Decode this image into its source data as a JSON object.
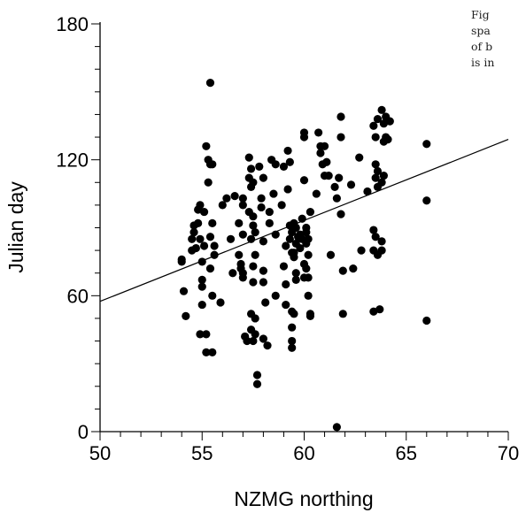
{
  "caption_lines": [
    "Fig",
    "spa",
    "of b",
    "is in"
  ],
  "chart_data": {
    "type": "scatter",
    "title": "",
    "xlabel": "NZMG northing",
    "ylabel": "Julian day",
    "xlim": [
      50,
      70
    ],
    "ylim": [
      0,
      180
    ],
    "xticks": [
      "50",
      "55",
      "60",
      "65",
      "70"
    ],
    "yticks": [
      "0",
      "60",
      "120",
      "180"
    ],
    "grid": false,
    "regression_line": {
      "x": [
        50,
        70
      ],
      "y": [
        57.5,
        129
      ]
    },
    "points": [
      [
        54.0,
        76
      ],
      [
        54.0,
        75
      ],
      [
        54.1,
        62
      ],
      [
        54.2,
        51
      ],
      [
        54.5,
        80
      ],
      [
        54.5,
        85
      ],
      [
        54.6,
        91
      ],
      [
        54.6,
        88
      ],
      [
        54.7,
        81
      ],
      [
        54.8,
        98
      ],
      [
        54.8,
        92
      ],
      [
        54.9,
        100
      ],
      [
        54.9,
        85
      ],
      [
        55.0,
        75
      ],
      [
        55.0,
        67
      ],
      [
        55.0,
        64
      ],
      [
        55.1,
        97
      ],
      [
        55.1,
        82
      ],
      [
        55.0,
        56
      ],
      [
        54.9,
        43
      ],
      [
        55.2,
        43
      ],
      [
        55.2,
        35
      ],
      [
        55.3,
        120
      ],
      [
        55.2,
        126
      ],
      [
        55.4,
        118
      ],
      [
        55.5,
        118
      ],
      [
        55.3,
        110
      ],
      [
        55.4,
        86
      ],
      [
        55.5,
        92
      ],
      [
        55.6,
        82
      ],
      [
        55.6,
        78
      ],
      [
        55.4,
        72
      ],
      [
        55.5,
        60
      ],
      [
        55.5,
        35
      ],
      [
        55.4,
        154
      ],
      [
        55.9,
        57
      ],
      [
        56.0,
        100
      ],
      [
        56.2,
        103
      ],
      [
        56.4,
        85
      ],
      [
        56.5,
        70
      ],
      [
        56.6,
        104
      ],
      [
        56.8,
        92
      ],
      [
        56.8,
        78
      ],
      [
        56.9,
        74
      ],
      [
        57.0,
        87
      ],
      [
        57.0,
        103
      ],
      [
        57.0,
        100
      ],
      [
        57.0,
        70
      ],
      [
        56.9,
        72
      ],
      [
        57.0,
        68
      ],
      [
        57.1,
        42
      ],
      [
        57.2,
        40
      ],
      [
        57.3,
        112
      ],
      [
        57.3,
        121
      ],
      [
        57.4,
        116
      ],
      [
        57.4,
        108
      ],
      [
        57.5,
        110
      ],
      [
        57.3,
        97
      ],
      [
        57.5,
        95
      ],
      [
        57.5,
        91
      ],
      [
        57.6,
        88
      ],
      [
        57.4,
        85
      ],
      [
        57.6,
        78
      ],
      [
        57.5,
        73
      ],
      [
        57.5,
        66
      ],
      [
        57.4,
        52
      ],
      [
        57.6,
        50
      ],
      [
        57.4,
        45
      ],
      [
        57.6,
        43
      ],
      [
        57.5,
        40
      ],
      [
        57.7,
        25
      ],
      [
        57.7,
        21
      ],
      [
        57.8,
        117
      ],
      [
        57.9,
        103
      ],
      [
        58.0,
        112
      ],
      [
        57.9,
        99
      ],
      [
        58.0,
        84
      ],
      [
        58.0,
        71
      ],
      [
        58.0,
        66
      ],
      [
        58.1,
        57
      ],
      [
        58.0,
        41
      ],
      [
        58.2,
        38
      ],
      [
        58.3,
        92
      ],
      [
        58.3,
        97
      ],
      [
        58.4,
        120
      ],
      [
        58.5,
        105
      ],
      [
        58.6,
        118
      ],
      [
        58.6,
        87
      ],
      [
        58.6,
        60
      ],
      [
        58.9,
        100
      ],
      [
        59.0,
        117
      ],
      [
        59.0,
        73
      ],
      [
        59.1,
        82
      ],
      [
        59.1,
        65
      ],
      [
        59.1,
        56
      ],
      [
        59.2,
        124
      ],
      [
        59.3,
        119
      ],
      [
        59.2,
        107
      ],
      [
        59.3,
        91
      ],
      [
        59.4,
        88
      ],
      [
        59.3,
        85
      ],
      [
        59.4,
        79
      ],
      [
        59.5,
        77
      ],
      [
        59.5,
        92
      ],
      [
        59.5,
        79
      ],
      [
        59.6,
        70
      ],
      [
        59.6,
        67
      ],
      [
        59.4,
        53
      ],
      [
        59.5,
        52
      ],
      [
        59.4,
        46
      ],
      [
        59.4,
        40
      ],
      [
        59.4,
        37
      ],
      [
        59.6,
        90
      ],
      [
        59.6,
        83
      ],
      [
        59.7,
        86
      ],
      [
        59.8,
        87
      ],
      [
        59.8,
        81
      ],
      [
        59.9,
        94
      ],
      [
        59.9,
        85
      ],
      [
        60.0,
        111
      ],
      [
        60.0,
        132
      ],
      [
        60.0,
        130
      ],
      [
        60.0,
        74
      ],
      [
        60.0,
        68
      ],
      [
        60.1,
        90
      ],
      [
        60.1,
        88
      ],
      [
        60.2,
        85
      ],
      [
        60.1,
        83
      ],
      [
        60.2,
        78
      ],
      [
        60.1,
        72
      ],
      [
        60.2,
        68
      ],
      [
        60.2,
        60
      ],
      [
        60.3,
        52
      ],
      [
        60.3,
        51
      ],
      [
        60.3,
        97
      ],
      [
        60.6,
        105
      ],
      [
        60.7,
        132
      ],
      [
        60.8,
        126
      ],
      [
        60.8,
        123
      ],
      [
        60.9,
        118
      ],
      [
        61.0,
        113
      ],
      [
        61.0,
        126
      ],
      [
        61.1,
        119
      ],
      [
        61.2,
        113
      ],
      [
        61.3,
        78
      ],
      [
        61.5,
        108
      ],
      [
        61.6,
        103
      ],
      [
        61.7,
        112
      ],
      [
        61.8,
        96
      ],
      [
        61.8,
        130
      ],
      [
        61.8,
        139
      ],
      [
        61.9,
        71
      ],
      [
        61.6,
        2
      ],
      [
        61.9,
        52
      ],
      [
        62.3,
        109
      ],
      [
        62.4,
        72
      ],
      [
        62.7,
        121
      ],
      [
        62.8,
        80
      ],
      [
        63.1,
        106
      ],
      [
        63.4,
        135
      ],
      [
        63.5,
        130
      ],
      [
        63.6,
        138
      ],
      [
        63.5,
        118
      ],
      [
        63.6,
        115
      ],
      [
        63.5,
        112
      ],
      [
        63.6,
        108
      ],
      [
        63.4,
        89
      ],
      [
        63.5,
        86
      ],
      [
        63.4,
        80
      ],
      [
        63.6,
        78
      ],
      [
        63.4,
        53
      ],
      [
        63.7,
        54
      ],
      [
        63.8,
        142
      ],
      [
        63.9,
        136
      ],
      [
        64.0,
        130
      ],
      [
        63.8,
        110
      ],
      [
        63.8,
        80
      ],
      [
        63.8,
        84
      ],
      [
        63.9,
        128
      ],
      [
        64.0,
        139
      ],
      [
        64.1,
        129
      ],
      [
        64.2,
        137
      ],
      [
        63.9,
        113
      ],
      [
        66.0,
        127
      ],
      [
        66.0,
        102
      ],
      [
        66.0,
        49
      ]
    ]
  }
}
